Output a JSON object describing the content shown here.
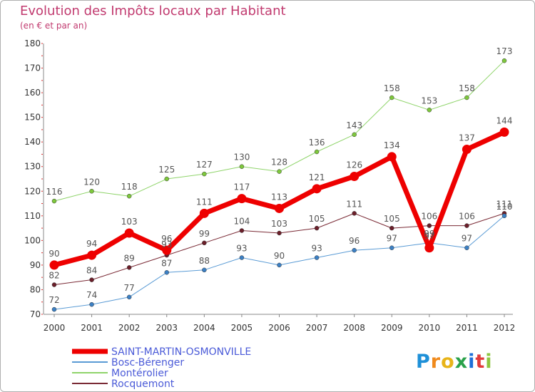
{
  "chart_data": {
    "type": "line",
    "title": "Evolution des Impôts locaux par Habitant",
    "subtitle": "(en € et par an)",
    "xlabel": "",
    "ylabel": "",
    "ylim": [
      70,
      180
    ],
    "yticks": [
      70,
      80,
      90,
      100,
      110,
      120,
      130,
      140,
      150,
      160,
      170,
      180
    ],
    "categories": [
      "2000",
      "2001",
      "2002",
      "2003",
      "2004",
      "2005",
      "2006",
      "2007",
      "2008",
      "2009",
      "2010",
      "2011",
      "2012"
    ],
    "grid": false,
    "legend_position": "bottom-left",
    "series": [
      {
        "name": "Montérolier",
        "color": "#8fd46a",
        "marker": "#7ec83c",
        "width": 1,
        "values": [
          116,
          120,
          118,
          125,
          127,
          130,
          128,
          136,
          143,
          158,
          153,
          158,
          173
        ],
        "labels": [
          "116",
          "120",
          "118",
          "125",
          "127",
          "130",
          "128",
          "136",
          "143",
          "158",
          "153",
          "158",
          "173"
        ]
      },
      {
        "name": "Rocquemont",
        "color": "#7a2a35",
        "marker": "#6b1f2a",
        "width": 1,
        "values": [
          82,
          84,
          89,
          94,
          99,
          104,
          103,
          105,
          111,
          105,
          106,
          106,
          111
        ],
        "labels": [
          "82",
          "84",
          "89",
          "",
          "99",
          "104",
          "103",
          "105",
          "111",
          "105",
          "106",
          "106",
          "111"
        ]
      },
      {
        "name": "Bosc-Bérenger",
        "color": "#5a9bd5",
        "marker": "#3c80c4",
        "width": 1,
        "values": [
          72,
          74,
          77,
          87,
          88,
          93,
          90,
          93,
          96,
          97,
          99,
          97,
          110
        ],
        "labels": [
          "72",
          "74",
          "77",
          "87",
          "88",
          "93",
          "90",
          "93",
          "96",
          "97",
          "",
          "97",
          "110"
        ]
      },
      {
        "name": "SAINT-MARTIN-OSMONVILLE",
        "color": "#ee0000",
        "marker": "#ee0000",
        "width": 7,
        "values": [
          90,
          94,
          103,
          96,
          111,
          117,
          113,
          121,
          126,
          134,
          97,
          137,
          144
        ],
        "labels": [
          "90",
          "94",
          "103",
          "96",
          "111",
          "117",
          "113",
          "121",
          "126",
          "134",
          "97",
          "137",
          "144"
        ]
      }
    ],
    "extra_labels": [
      "93",
      "99"
    ],
    "legend": [
      "SAINT-MARTIN-OSMONVILLE",
      "Bosc-Bérenger",
      "Montérolier",
      "Rocquemont"
    ]
  },
  "branding": {
    "logo_text": "Proxiti",
    "logo_letters": [
      "P",
      "r",
      "o",
      "x",
      "i",
      "t",
      "i"
    ]
  }
}
